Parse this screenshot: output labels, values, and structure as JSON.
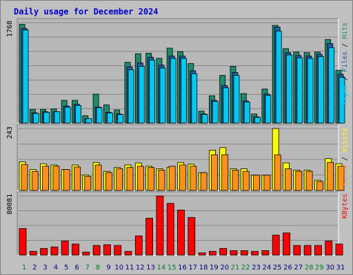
{
  "title": "Daily usage for December 2024",
  "colors": {
    "background": "#c0c0c0",
    "panel": "#b8b8b8",
    "grid": "#888888",
    "hits": "#1e8a6e",
    "files": "#1e5ea8",
    "pages": "#00c8f0",
    "visits": "#ffff00",
    "sites": "#ff9020",
    "kbytes": "#ff0000",
    "weekend_day": "#00802a",
    "weekday_day": "#000080",
    "title": "#0000cc"
  },
  "chart_data": [
    {
      "type": "bar",
      "name": "hits-files-pages",
      "axis_max_label": "1768",
      "ylim": [
        0,
        1768
      ],
      "grid": true,
      "legend_right": [
        "Pages",
        "Files",
        "Hits"
      ],
      "legend_colors": [
        "#00c8f0",
        "#1e5ea8",
        "#1e8a6e"
      ],
      "categories": [
        "1",
        "2",
        "3",
        "4",
        "5",
        "6",
        "7",
        "8",
        "9",
        "10",
        "11",
        "12",
        "13",
        "14",
        "15",
        "16",
        "17",
        "18",
        "19",
        "20",
        "21",
        "22",
        "23",
        "24",
        "25",
        "26",
        "27",
        "28",
        "29",
        "30",
        "31"
      ],
      "series": [
        {
          "name": "Hits",
          "values": [
            1740,
            240,
            240,
            250,
            400,
            400,
            130,
            510,
            320,
            230,
            1070,
            1220,
            1230,
            1140,
            1320,
            1260,
            1050,
            210,
            480,
            840,
            1000,
            520,
            160,
            600,
            1720,
            1310,
            1250,
            1240,
            1250,
            1470,
            930
          ]
        },
        {
          "name": "Files",
          "values": [
            1670,
            180,
            200,
            200,
            300,
            330,
            80,
            280,
            190,
            160,
            990,
            1060,
            1160,
            1020,
            1180,
            1180,
            920,
            160,
            400,
            660,
            890,
            390,
            110,
            510,
            1690,
            1240,
            1190,
            1180,
            1210,
            1400,
            860
          ]
        },
        {
          "name": "Pages",
          "values": [
            1640,
            170,
            190,
            200,
            280,
            310,
            80,
            270,
            180,
            150,
            940,
            1000,
            1110,
            970,
            1140,
            1140,
            870,
            150,
            380,
            620,
            840,
            370,
            100,
            490,
            1620,
            1200,
            1150,
            1140,
            1170,
            1330,
            810
          ]
        }
      ]
    },
    {
      "type": "bar",
      "name": "visits-sites",
      "axis_max_label": "243",
      "ylim": [
        0,
        243
      ],
      "grid": true,
      "legend_right": [
        "Sites",
        "Visits"
      ],
      "legend_colors": [
        "#ff9020",
        "#ffff00"
      ],
      "categories": [
        "1",
        "2",
        "3",
        "4",
        "5",
        "6",
        "7",
        "8",
        "9",
        "10",
        "11",
        "12",
        "13",
        "14",
        "15",
        "16",
        "17",
        "18",
        "19",
        "20",
        "21",
        "22",
        "23",
        "24",
        "25",
        "26",
        "27",
        "28",
        "29",
        "30",
        "31"
      ],
      "series": [
        {
          "name": "Visits",
          "values": [
            112,
            82,
            105,
            100,
            82,
            100,
            60,
            110,
            75,
            90,
            100,
            108,
            95,
            85,
            90,
            110,
            103,
            70,
            158,
            168,
            85,
            85,
            60,
            60,
            243,
            108,
            80,
            80,
            40,
            125,
            105
          ]
        },
        {
          "name": "Sites",
          "values": [
            102,
            75,
            95,
            95,
            82,
            92,
            55,
            100,
            70,
            85,
            90,
            95,
            90,
            80,
            95,
            100,
            95,
            70,
            140,
            140,
            80,
            75,
            60,
            60,
            140,
            85,
            75,
            75,
            35,
            110,
            95
          ]
        }
      ]
    },
    {
      "type": "bar",
      "name": "kbytes",
      "axis_max_label": "80081",
      "ylim": [
        0,
        80081
      ],
      "grid": true,
      "legend_right": [
        "KBytes"
      ],
      "legend_colors": [
        "#ff0000"
      ],
      "categories": [
        "1",
        "2",
        "3",
        "4",
        "5",
        "6",
        "7",
        "8",
        "9",
        "10",
        "11",
        "12",
        "13",
        "14",
        "15",
        "16",
        "17",
        "18",
        "19",
        "20",
        "21",
        "22",
        "23",
        "24",
        "25",
        "26",
        "27",
        "28",
        "29",
        "30",
        "31"
      ],
      "series": [
        {
          "name": "KBytes",
          "values": [
            36000,
            5000,
            9000,
            11000,
            19000,
            15000,
            4000,
            13000,
            14000,
            13000,
            5000,
            26000,
            50000,
            80081,
            70000,
            61000,
            51000,
            3000,
            5000,
            9000,
            6000,
            6000,
            5000,
            6000,
            27000,
            30000,
            13000,
            13000,
            13000,
            19000,
            15000
          ]
        }
      ]
    }
  ],
  "days": {
    "labels": [
      "1",
      "2",
      "3",
      "4",
      "5",
      "6",
      "7",
      "8",
      "9",
      "10",
      "11",
      "12",
      "13",
      "14",
      "15",
      "16",
      "17",
      "18",
      "19",
      "20",
      "21",
      "22",
      "23",
      "24",
      "25",
      "26",
      "27",
      "28",
      "29",
      "30",
      "31"
    ],
    "weekend": [
      "1",
      "7",
      "8",
      "14",
      "15",
      "21",
      "22",
      "28",
      "29"
    ]
  }
}
